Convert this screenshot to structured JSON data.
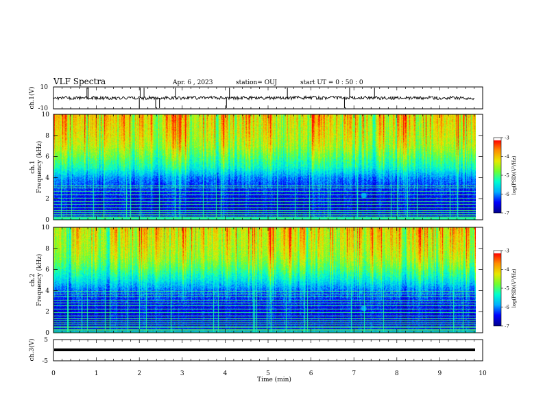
{
  "header": {
    "title": "VLF Spectra",
    "date": "Apr. 6 , 2023",
    "station": "station= OUJ",
    "start": "start UT = 0 : 50 : 0"
  },
  "colors": {
    "spectrogram_scale": [
      "#000090",
      "#0000ff",
      "#00b0ff",
      "#00ffd0",
      "#70ff30",
      "#e8e800",
      "#ff9000",
      "#ff0000",
      "#ffffff"
    ],
    "trace": "#000000"
  },
  "chart_data": [
    {
      "type": "line",
      "name": "ch1-voltage",
      "ylabel": "ch.1(V)",
      "ylim": [
        -10,
        10
      ],
      "yticks": [
        "10",
        "-10"
      ],
      "xlim": [
        0,
        10
      ],
      "x": [
        0,
        1,
        2,
        3,
        4,
        5,
        6,
        7,
        8,
        9,
        9.8
      ],
      "y": [
        0,
        0,
        0,
        0,
        0,
        0,
        0,
        0,
        0,
        0,
        0
      ]
    },
    {
      "type": "heatmap",
      "name": "ch1-spectrogram",
      "ylabel": "ch.1\nFrequency (kHz)",
      "ylim": [
        0,
        10
      ],
      "yticks": [
        "0",
        "2",
        "4",
        "6",
        "8",
        "10"
      ],
      "xlim": [
        0,
        10
      ],
      "colorbar": {
        "label": "log(PSD)(V²/Hz)",
        "range": [
          -7,
          -3
        ],
        "ticks": [
          "-3",
          "-4",
          "-5",
          "-6",
          "-7"
        ]
      },
      "frequency_kHz": [
        0,
        1,
        2,
        3,
        4,
        5,
        6,
        7,
        8,
        9,
        10
      ],
      "log_psd": [
        -6.5,
        -6.6,
        -6.5,
        -6.3,
        -6.0,
        -5.3,
        -4.9,
        -4.5,
        -4.3,
        -4.2,
        -4.1
      ]
    },
    {
      "type": "heatmap",
      "name": "ch2-spectrogram",
      "ylabel": "ch.2\nFrequency (kHz)",
      "ylim": [
        0,
        10
      ],
      "yticks": [
        "0",
        "2",
        "4",
        "6",
        "8",
        "10"
      ],
      "xlim": [
        0,
        10
      ],
      "colorbar": {
        "label": "log(PSD)(V²/Hz)",
        "range": [
          -7,
          -3
        ],
        "ticks": [
          "-3",
          "-4",
          "-5",
          "-6",
          "-7"
        ]
      },
      "frequency_kHz": [
        0,
        1,
        2,
        3,
        4,
        5,
        6,
        7,
        8,
        9,
        10
      ],
      "log_psd": [
        -6.5,
        -6.6,
        -6.5,
        -6.4,
        -6.1,
        -5.5,
        -5.0,
        -4.6,
        -4.4,
        -4.3,
        -4.2
      ]
    },
    {
      "type": "line",
      "name": "ch3-voltage",
      "ylabel": "ch.3(V)",
      "ylim": [
        -5,
        5
      ],
      "yticks": [
        "5",
        "-5"
      ],
      "xlim": [
        0,
        10
      ],
      "x": [
        0,
        9.8
      ],
      "y": [
        0,
        0
      ]
    }
  ],
  "xaxis": {
    "label": "Time (min)",
    "ticks": [
      "0",
      "1",
      "2",
      "3",
      "4",
      "5",
      "6",
      "7",
      "8",
      "9",
      "10"
    ]
  }
}
